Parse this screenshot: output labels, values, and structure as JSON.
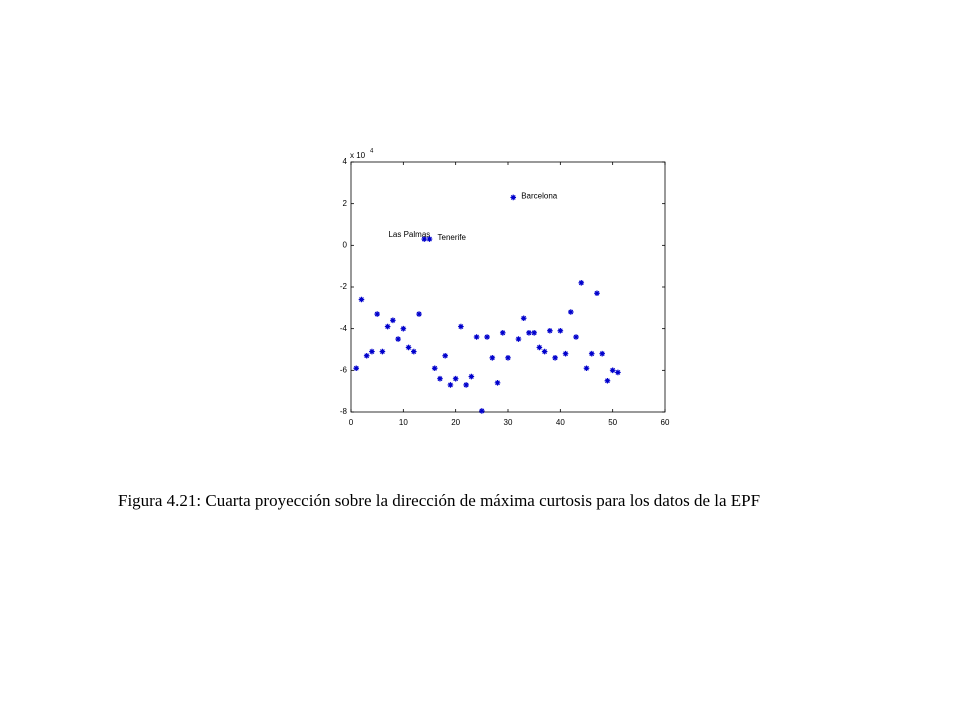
{
  "chart_data": {
    "type": "scatter",
    "caption": "Figura 4.21: Cuarta proyección sobre la dirección de máxima curtosis para los datos de la EPF",
    "y_multiplier": {
      "base": "x 10",
      "exponent": "4"
    },
    "xlim": [
      0,
      60
    ],
    "xticks": [
      0,
      10,
      20,
      30,
      40,
      50,
      60
    ],
    "ylim": [
      -8,
      4
    ],
    "yticks": [
      -8,
      -6,
      -4,
      -2,
      0,
      2,
      4
    ],
    "grid": false,
    "series": [
      {
        "color": "#0000cc",
        "x": [
          1,
          2,
          3,
          4,
          5,
          6,
          7,
          8,
          9,
          10,
          11,
          12,
          13,
          14,
          15,
          16,
          17,
          18,
          19,
          20,
          21,
          22,
          23,
          24,
          25,
          26,
          27,
          28,
          29,
          30,
          31,
          32,
          33,
          34,
          35,
          36,
          37,
          38,
          39,
          40,
          41,
          42,
          43,
          44,
          45,
          46,
          47,
          48,
          49,
          50,
          51
        ],
        "values": [
          -5.9,
          -2.6,
          -5.3,
          -5.1,
          -3.3,
          -5.1,
          -3.9,
          -3.6,
          -4.5,
          -4.0,
          -4.9,
          -5.1,
          -3.3,
          0.3,
          0.3,
          -5.9,
          -6.4,
          -5.3,
          -6.7,
          -6.4,
          -3.9,
          -6.7,
          -6.3,
          -4.4,
          -7.95,
          -4.4,
          -5.4,
          -6.6,
          -4.2,
          -5.4,
          2.3,
          -4.5,
          -3.5,
          -4.2,
          -4.2,
          -4.9,
          -5.1,
          -4.1,
          -5.4,
          -4.1,
          -5.2,
          -3.2,
          -4.4,
          -1.8,
          -5.9,
          -5.2,
          -2.3,
          -5.2,
          -6.5,
          -6.0,
          -6.1
        ],
        "labels": [
          null,
          null,
          null,
          null,
          null,
          null,
          null,
          null,
          null,
          null,
          null,
          null,
          null,
          "Las Palmas",
          "Tenerife",
          null,
          null,
          null,
          null,
          null,
          null,
          null,
          null,
          null,
          null,
          null,
          null,
          null,
          null,
          null,
          "Barcelona",
          null,
          null,
          null,
          null,
          null,
          null,
          null,
          null,
          null,
          null,
          null,
          null,
          null,
          null,
          null,
          null,
          null,
          null,
          null,
          null
        ]
      }
    ]
  }
}
